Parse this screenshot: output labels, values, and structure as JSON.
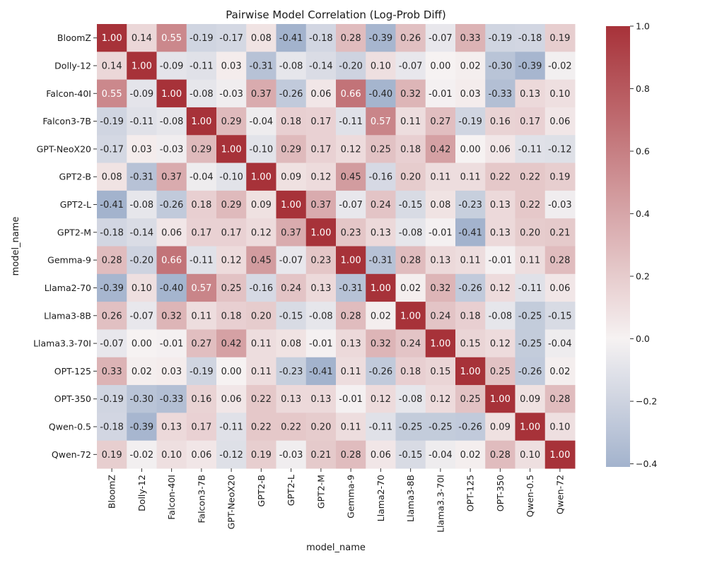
{
  "chart_data": {
    "type": "heatmap",
    "title": "Pairwise Model Correlation (Log-Prob Diff)",
    "xlabel": "model_name",
    "ylabel": "model_name",
    "categories": [
      "BloomZ",
      "Dolly-12",
      "Falcon-40I",
      "Falcon3-7B",
      "GPT-NeoX20",
      "GPT2-B",
      "GPT2-L",
      "GPT2-M",
      "Gemma-9",
      "Llama2-70",
      "Llama3-8B",
      "Llama3.3-70I",
      "OPT-125",
      "OPT-350",
      "Qwen-0.5",
      "Qwen-72"
    ],
    "values": [
      [
        1.0,
        0.14,
        0.55,
        -0.19,
        -0.17,
        0.08,
        -0.41,
        -0.18,
        0.28,
        -0.39,
        0.26,
        -0.07,
        0.33,
        -0.19,
        -0.18,
        0.19
      ],
      [
        0.14,
        1.0,
        -0.09,
        -0.11,
        0.03,
        -0.31,
        -0.08,
        -0.14,
        -0.2,
        0.1,
        -0.07,
        0.0,
        0.02,
        -0.3,
        -0.39,
        -0.02
      ],
      [
        0.55,
        -0.09,
        1.0,
        -0.08,
        -0.03,
        0.37,
        -0.26,
        0.06,
        0.66,
        -0.4,
        0.32,
        -0.01,
        0.03,
        -0.33,
        0.13,
        0.1
      ],
      [
        -0.19,
        -0.11,
        -0.08,
        1.0,
        0.29,
        -0.04,
        0.18,
        0.17,
        -0.11,
        0.57,
        0.11,
        0.27,
        -0.19,
        0.16,
        0.17,
        0.06
      ],
      [
        -0.17,
        0.03,
        -0.03,
        0.29,
        1.0,
        -0.1,
        0.29,
        0.17,
        0.12,
        0.25,
        0.18,
        0.42,
        0.0,
        0.06,
        -0.11,
        -0.12
      ],
      [
        0.08,
        -0.31,
        0.37,
        -0.04,
        -0.1,
        1.0,
        0.09,
        0.12,
        0.45,
        -0.16,
        0.2,
        0.11,
        0.11,
        0.22,
        0.22,
        0.19
      ],
      [
        -0.41,
        -0.08,
        -0.26,
        0.18,
        0.29,
        0.09,
        1.0,
        0.37,
        -0.07,
        0.24,
        -0.15,
        0.08,
        -0.23,
        0.13,
        0.22,
        -0.03
      ],
      [
        -0.18,
        -0.14,
        0.06,
        0.17,
        0.17,
        0.12,
        0.37,
        1.0,
        0.23,
        0.13,
        -0.08,
        -0.01,
        -0.41,
        0.13,
        0.2,
        0.21
      ],
      [
        0.28,
        -0.2,
        0.66,
        -0.11,
        0.12,
        0.45,
        -0.07,
        0.23,
        1.0,
        -0.31,
        0.28,
        0.13,
        0.11,
        -0.01,
        0.11,
        0.28
      ],
      [
        -0.39,
        0.1,
        -0.4,
        0.57,
        0.25,
        -0.16,
        0.24,
        0.13,
        -0.31,
        1.0,
        0.02,
        0.32,
        -0.26,
        0.12,
        -0.11,
        0.06
      ],
      [
        0.26,
        -0.07,
        0.32,
        0.11,
        0.18,
        0.2,
        -0.15,
        -0.08,
        0.28,
        0.02,
        1.0,
        0.24,
        0.18,
        -0.08,
        -0.25,
        -0.15
      ],
      [
        -0.07,
        0.0,
        -0.01,
        0.27,
        0.42,
        0.11,
        0.08,
        -0.01,
        0.13,
        0.32,
        0.24,
        1.0,
        0.15,
        0.12,
        -0.25,
        -0.04
      ],
      [
        0.33,
        0.02,
        0.03,
        -0.19,
        0.0,
        0.11,
        -0.23,
        -0.41,
        0.11,
        -0.26,
        0.18,
        0.15,
        1.0,
        0.25,
        -0.26,
        0.02
      ],
      [
        -0.19,
        -0.3,
        -0.33,
        0.16,
        0.06,
        0.22,
        0.13,
        0.13,
        -0.01,
        0.12,
        -0.08,
        0.12,
        0.25,
        1.0,
        0.09,
        0.28
      ],
      [
        -0.18,
        -0.39,
        0.13,
        0.17,
        -0.11,
        0.22,
        0.22,
        0.2,
        0.11,
        -0.11,
        -0.25,
        -0.25,
        -0.26,
        0.09,
        1.0,
        0.1
      ],
      [
        0.19,
        -0.02,
        0.1,
        0.06,
        -0.12,
        0.19,
        -0.03,
        0.21,
        0.28,
        0.06,
        -0.15,
        -0.04,
        0.02,
        0.28,
        0.1,
        1.0
      ]
    ],
    "colorbar": {
      "vmin": -0.41,
      "vmax": 1.0,
      "center": 0.0,
      "ticks": [
        1.0,
        0.8,
        0.6,
        0.4,
        0.2,
        0.0,
        -0.2,
        -0.4
      ],
      "tick_labels": [
        "1.0",
        "0.8",
        "0.6",
        "0.4",
        "0.2",
        "0.0",
        "−0.2",
        "−0.4"
      ]
    },
    "colors": {
      "negative": "#a3b3cd",
      "center": "#f6f2f2",
      "positive": "#a73239"
    },
    "legend": "colorbar-right",
    "grid": false
  }
}
